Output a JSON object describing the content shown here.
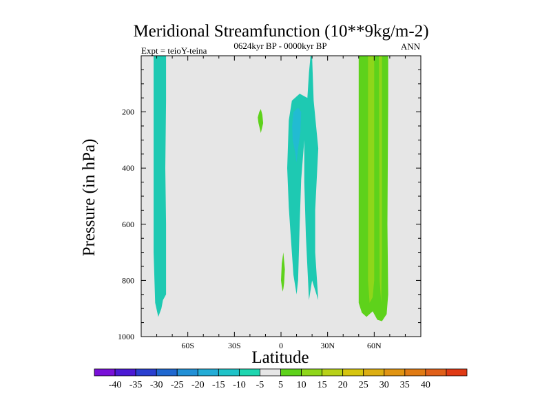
{
  "chart_data": {
    "type": "contour",
    "title": "Meridional Streamfunction (10**9kg/m-2)",
    "subtitle": "0624kyr BP - 0000kyr BP",
    "left_label": "Expt = teioY-teina",
    "right_label": "ANN",
    "xlabel": "Latitude",
    "ylabel": "Pressure (in hPa)",
    "xlim": [
      -90,
      90
    ],
    "ylim": [
      1000,
      0
    ],
    "x_ticks": [
      {
        "value": -60,
        "label": "60S"
      },
      {
        "value": -30,
        "label": "30S"
      },
      {
        "value": 0,
        "label": "0"
      },
      {
        "value": 30,
        "label": "30N"
      },
      {
        "value": 60,
        "label": "60N"
      }
    ],
    "y_ticks": [
      {
        "value": 200,
        "label": "200"
      },
      {
        "value": 400,
        "label": "400"
      },
      {
        "value": 600,
        "label": "600"
      },
      {
        "value": 800,
        "label": "800"
      },
      {
        "value": 1000,
        "label": "1000"
      }
    ],
    "background_color": "#e6e6e6",
    "regions": [
      {
        "name": "southern-negative-cell",
        "level": -5,
        "color": "#1ec9b2",
        "points": [
          [
            -82,
            0
          ],
          [
            -74,
            0
          ],
          [
            -74,
            160
          ],
          [
            -74.5,
            400
          ],
          [
            -74,
            600
          ],
          [
            -74,
            850
          ],
          [
            -76,
            870
          ],
          [
            -77,
            900
          ],
          [
            -79,
            930
          ],
          [
            -81,
            880
          ],
          [
            -82,
            700
          ],
          [
            -82,
            400
          ],
          [
            -82,
            0
          ]
        ]
      },
      {
        "name": "upper-positive-blob",
        "level": 5,
        "color": "#5ed21b",
        "points": [
          [
            -14,
            200
          ],
          [
            -13,
            190
          ],
          [
            -12,
            210
          ],
          [
            -11.5,
            240
          ],
          [
            -13,
            275
          ],
          [
            -14.5,
            240
          ],
          [
            -15,
            220
          ],
          [
            -14,
            200
          ]
        ]
      },
      {
        "name": "lower-positive-blob",
        "level": 5,
        "color": "#5ed21b",
        "points": [
          [
            0,
            800
          ],
          [
            0.5,
            740
          ],
          [
            1.5,
            700
          ],
          [
            2.5,
            760
          ],
          [
            2,
            810
          ],
          [
            1.5,
            830
          ],
          [
            1,
            840
          ],
          [
            0.5,
            820
          ],
          [
            0,
            800
          ]
        ]
      },
      {
        "name": "central-negative-cell",
        "level": -5,
        "color": "#1ec9b2",
        "points": [
          [
            20,
            0
          ],
          [
            21,
            160
          ],
          [
            24,
            330
          ],
          [
            22,
            550
          ],
          [
            22,
            700
          ],
          [
            24,
            870
          ],
          [
            20,
            800
          ],
          [
            18,
            870
          ],
          [
            16,
            640
          ],
          [
            15,
            450
          ],
          [
            15,
            300
          ],
          [
            13,
            440
          ],
          [
            12,
            600
          ],
          [
            11,
            800
          ],
          [
            10,
            850
          ],
          [
            8,
            780
          ],
          [
            6,
            620
          ],
          [
            5,
            540
          ],
          [
            4,
            400
          ],
          [
            5,
            230
          ],
          [
            7,
            160
          ],
          [
            12,
            135
          ],
          [
            17,
            150
          ],
          [
            18,
            60
          ],
          [
            19,
            0
          ],
          [
            20,
            0
          ]
        ]
      },
      {
        "name": "central-strong-core",
        "level": -10,
        "color": "#22bbd2",
        "points": [
          [
            8,
            200
          ],
          [
            11,
            185
          ],
          [
            13,
            200
          ],
          [
            12.5,
            270
          ],
          [
            11,
            330
          ],
          [
            10,
            380
          ],
          [
            9,
            340
          ],
          [
            7.5,
            300
          ],
          [
            7.2,
            250
          ],
          [
            8,
            200
          ]
        ]
      },
      {
        "name": "northern-positive-cell",
        "level": 5,
        "color": "#5ed21b",
        "points": [
          [
            50,
            0
          ],
          [
            69,
            0
          ],
          [
            69,
            150
          ],
          [
            68.5,
            600
          ],
          [
            69,
            850
          ],
          [
            68,
            920
          ],
          [
            65,
            945
          ],
          [
            62,
            940
          ],
          [
            59,
            910
          ],
          [
            55,
            930
          ],
          [
            52,
            915
          ],
          [
            50,
            880
          ],
          [
            50,
            600
          ],
          [
            50,
            0
          ]
        ]
      },
      {
        "name": "northern-strong-band",
        "level": 10,
        "color": "#8fd61a",
        "points": [
          [
            56,
            0
          ],
          [
            60,
            0
          ],
          [
            60,
            800
          ],
          [
            59,
            860
          ],
          [
            57,
            880
          ],
          [
            56,
            800
          ],
          [
            56,
            0
          ]
        ]
      },
      {
        "name": "northern-strong-thin",
        "level": 10,
        "color": "#8fd61a",
        "points": [
          [
            63,
            0
          ],
          [
            65,
            0
          ],
          [
            65,
            700
          ],
          [
            64.5,
            880
          ],
          [
            63.5,
            800
          ],
          [
            63,
            0
          ]
        ]
      }
    ],
    "colorbar": {
      "colors": [
        "#7910d8",
        "#4b19d4",
        "#2a3fd0",
        "#1f68d0",
        "#2290d6",
        "#23acd6",
        "#1fc3c8",
        "#1ed6b0",
        "#e6e6e6",
        "#5ed21b",
        "#8fd61a",
        "#b8d119",
        "#d6c50f",
        "#dcae12",
        "#e09412",
        "#e07b14",
        "#e0601a",
        "#e03a15"
      ],
      "labels": [
        "-40",
        "-35",
        "-30",
        "-25",
        "-20",
        "-15",
        "-10",
        "-5",
        "5",
        "10",
        "15",
        "20",
        "25",
        "30",
        "35",
        "40"
      ]
    }
  }
}
